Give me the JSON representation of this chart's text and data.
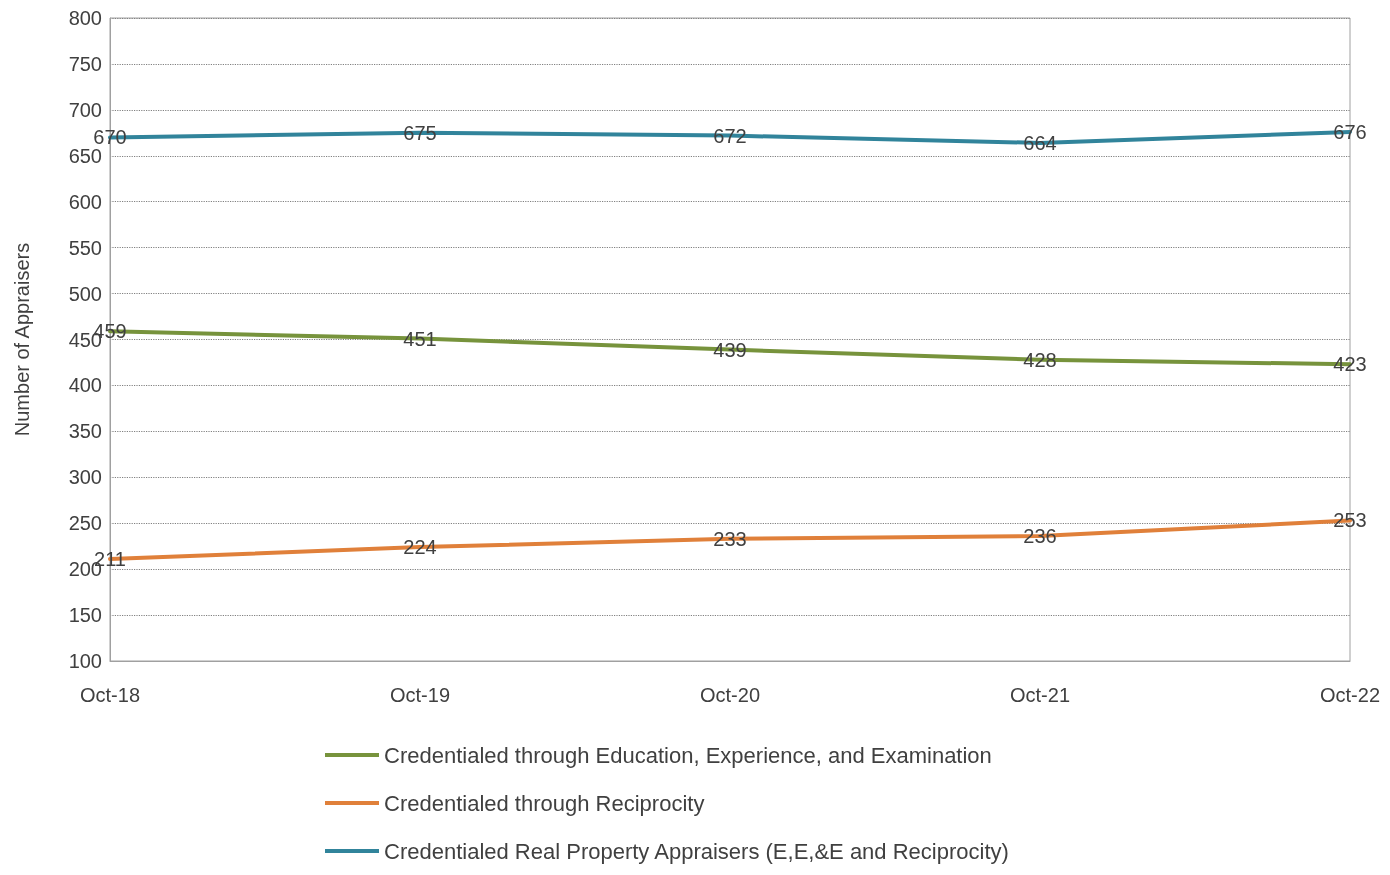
{
  "chart_data": {
    "type": "line",
    "ylabel": "Number of Appraisers",
    "categories": [
      "Oct-18",
      "Oct-19",
      "Oct-20",
      "Oct-21",
      "Oct-22"
    ],
    "series": [
      {
        "name": "Credentialed through Education, Experience, and Examination",
        "color": "#77933c",
        "values": [
          459,
          451,
          439,
          428,
          423
        ]
      },
      {
        "name": "Credentialed through Reciprocity",
        "color": "#e0803a",
        "values": [
          211,
          224,
          233,
          236,
          253
        ]
      },
      {
        "name": "Credentialed Real Property Appraisers (E,E,&E and Reciprocity)",
        "color": "#31849b",
        "values": [
          670,
          675,
          672,
          664,
          676
        ]
      }
    ],
    "ylim": [
      100,
      800
    ],
    "yticks": [
      100,
      150,
      200,
      250,
      300,
      350,
      400,
      450,
      500,
      550,
      600,
      650,
      700,
      750,
      800
    ],
    "grid": "y",
    "legend": "bottom",
    "data_labels": true,
    "marker": "none",
    "line_style": "solid"
  }
}
